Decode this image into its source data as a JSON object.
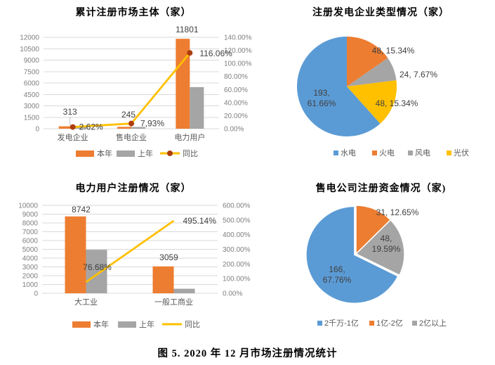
{
  "figure_caption": "图 5.  2020 年 12 月市场注册情况统计",
  "palette": {
    "bar_current": "#ED7D31",
    "bar_previous": "#A5A5A5",
    "line_yoy": "#FFC000",
    "line_marker": "#AD3E0C",
    "pie_blue": "#5B9BD5",
    "pie_orange": "#ED7D31",
    "pie_gray": "#A5A5A5",
    "pie_yellow": "#FFC000"
  },
  "chart_data": [
    {
      "id": "cumulative-market-entities",
      "type": "bar",
      "title": "累计注册市场主体（家）",
      "categories": [
        "发电企业",
        "售电企业",
        "电力用户"
      ],
      "series": [
        {
          "name": "本年",
          "kind": "bar",
          "color": "#ED7D31",
          "values": [
            313,
            245,
            11801
          ],
          "value_labels": [
            "313",
            "245",
            "11801"
          ]
        },
        {
          "name": "上年",
          "kind": "bar",
          "color": "#A5A5A5",
          "values": [
            305,
            227,
            5462
          ]
        },
        {
          "name": "同比",
          "kind": "line",
          "axis": "secondary",
          "color": "#FFC000",
          "marker_color": "#AD3E0C",
          "values": [
            2.62,
            7.93,
            116.06
          ],
          "value_labels": [
            "2.62%",
            "7,93%",
            "116.06%"
          ]
        }
      ],
      "ylim": [
        0,
        12000
      ],
      "yticks": [
        "0",
        "1500",
        "3000",
        "4500",
        "6000",
        "7500",
        "9000",
        "10500",
        "12000"
      ],
      "y2lim": [
        0,
        140
      ],
      "y2ticks": [
        "0.00%",
        "20.00%",
        "40.00%",
        "60.00%",
        "80.00%",
        "100.00%",
        "120.00%",
        "140.00%"
      ],
      "grid": true,
      "legend_position": "bottom"
    },
    {
      "id": "generation-company-types",
      "type": "pie",
      "title": "注册发电企业类型情况（家）",
      "slices": [
        {
          "name": "火电",
          "value": 48,
          "pct": 15.34,
          "color": "#ED7D31",
          "label_lines": [
            "48, 15.34%"
          ]
        },
        {
          "name": "风电",
          "value": 24,
          "pct": 7.67,
          "color": "#A5A5A5",
          "label_lines": [
            "24, 7.67%"
          ]
        },
        {
          "name": "光伏",
          "value": 48,
          "pct": 15.34,
          "color": "#FFC000",
          "label_lines": [
            "48, 15.34%"
          ]
        },
        {
          "name": "水电",
          "value": 193,
          "pct": 61.66,
          "color": "#5B9BD5",
          "label_lines": [
            "193,",
            "61.66%"
          ]
        }
      ],
      "legend": [
        {
          "label": "水电",
          "color": "#5B9BD5"
        },
        {
          "label": "火电",
          "color": "#ED7D31"
        },
        {
          "label": "风电",
          "color": "#A5A5A5"
        },
        {
          "label": "光伏",
          "color": "#FFC000"
        }
      ],
      "legend_position": "bottom"
    },
    {
      "id": "power-user-registration",
      "type": "bar",
      "title": "电力用户注册情况（家）",
      "categories": [
        "大工业",
        "一般工商业"
      ],
      "series": [
        {
          "name": "本年",
          "kind": "bar",
          "color": "#ED7D31",
          "values": [
            8742,
            3059
          ],
          "value_labels": [
            "8742",
            "3059"
          ]
        },
        {
          "name": "上年",
          "kind": "bar",
          "color": "#A5A5A5",
          "values": [
            4948,
            514
          ]
        },
        {
          "name": "同比",
          "kind": "line",
          "axis": "secondary",
          "color": "#FFC000",
          "values": [
            76.68,
            495.14
          ],
          "value_labels": [
            "76.68%",
            "495.14%"
          ]
        }
      ],
      "ylim": [
        0,
        10000
      ],
      "yticks": [
        "0",
        "1000",
        "2000",
        "3000",
        "4000",
        "5000",
        "6000",
        "7000",
        "8000",
        "9000",
        "10000"
      ],
      "y2lim": [
        0,
        600
      ],
      "y2ticks": [
        "0.00%",
        "100.00%",
        "200.00%",
        "300.00%",
        "400.00%",
        "500.00%",
        "600.00%"
      ],
      "grid": true,
      "legend_position": "bottom"
    },
    {
      "id": "retail-company-capital",
      "type": "pie",
      "title": "售电公司注册资金情况（家)",
      "slices": [
        {
          "name": "1亿-2亿",
          "value": 31,
          "pct": 12.65,
          "color": "#ED7D31",
          "label_lines": [
            "31, 12.65%"
          ]
        },
        {
          "name": "2亿以上",
          "value": 48,
          "pct": 19.59,
          "color": "#A5A5A5",
          "label_lines": [
            "48,",
            "19.59%"
          ]
        },
        {
          "name": "2千万-1亿",
          "value": 166,
          "pct": 67.76,
          "color": "#5B9BD5",
          "label_lines": [
            "166,",
            "67.76%"
          ]
        }
      ],
      "legend": [
        {
          "label": "2千万-1亿",
          "color": "#5B9BD5"
        },
        {
          "label": "1亿-2亿",
          "color": "#ED7D31"
        },
        {
          "label": "2亿以上",
          "color": "#A5A5A5"
        }
      ],
      "legend_position": "bottom"
    }
  ]
}
